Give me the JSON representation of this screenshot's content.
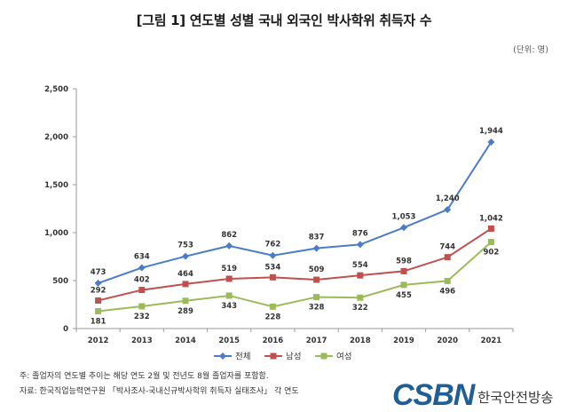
{
  "title": "[그림 1] 연도별 성별 국내 외국인 박사학위 취득자 수",
  "unit_label": "(단위: 명)",
  "notes": [
    "주: 졸업자의 연도별 추이는 해당 연도 2월 및 전년도 8월 졸업자를 포함함.",
    "자료: 한국직업능력연구원 「박사조사-국내신규박사학위 취득자 실태조사」 각 연도"
  ],
  "brand": {
    "logo_text": "CSBN",
    "name": "한국안전방송",
    "logo_color": "#1f5f95"
  },
  "chart_data": {
    "type": "line",
    "categories": [
      "2012",
      "2013",
      "2014",
      "2015",
      "2016",
      "2017",
      "2018",
      "2019",
      "2020",
      "2021"
    ],
    "series": [
      {
        "name": "전체",
        "color": "#4a7cc7",
        "marker": "diamond",
        "values": [
          473,
          634,
          753,
          862,
          762,
          837,
          876,
          1053,
          1240,
          1944
        ],
        "labels": [
          "473",
          "634",
          "753",
          "862",
          "762",
          "837",
          "876",
          "1,053",
          "1,240",
          "1,944"
        ]
      },
      {
        "name": "남성",
        "color": "#c0504d",
        "marker": "square",
        "values": [
          292,
          402,
          464,
          519,
          534,
          509,
          554,
          598,
          744,
          1042
        ],
        "labels": [
          "292",
          "402",
          "464",
          "519",
          "534",
          "509",
          "554",
          "598",
          "744",
          "1,042"
        ]
      },
      {
        "name": "여성",
        "color": "#9bbb59",
        "marker": "square",
        "values": [
          181,
          232,
          289,
          343,
          228,
          328,
          322,
          455,
          496,
          902
        ],
        "labels": [
          "181",
          "232",
          "289",
          "343",
          "228",
          "328",
          "322",
          "455",
          "496",
          "902"
        ]
      }
    ],
    "ylim": [
      0,
      2500
    ],
    "yticks": [
      0,
      500,
      1000,
      1500,
      2000,
      2500
    ],
    "ytick_labels": [
      "0",
      "500",
      "1,000",
      "1,500",
      "2,000",
      "2,500"
    ],
    "grid": false,
    "legend_position": "bottom"
  }
}
